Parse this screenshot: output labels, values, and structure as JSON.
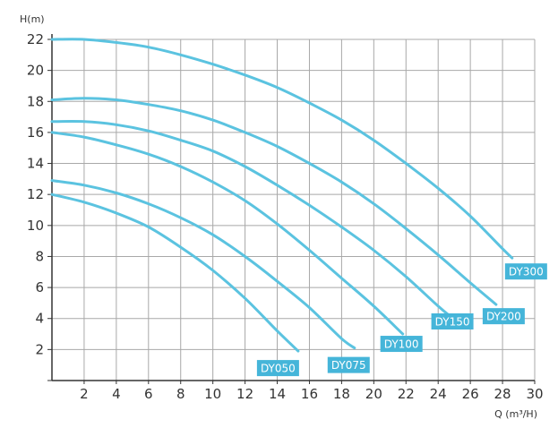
{
  "chart_data": {
    "type": "line",
    "title": "",
    "xlabel": "Q (m³/H)",
    "ylabel": "H(m)",
    "xlim": [
      0,
      30
    ],
    "ylim": [
      0,
      22
    ],
    "x_ticks": [
      2,
      4,
      6,
      8,
      10,
      12,
      14,
      16,
      18,
      20,
      22,
      24,
      26,
      28,
      30
    ],
    "y_ticks": [
      2,
      4,
      6,
      8,
      10,
      12,
      14,
      16,
      18,
      20,
      22
    ],
    "grid": true,
    "legend": "inline labels at curve ends",
    "colors": {
      "curve": "#5bc3e0",
      "label_bg": "#45b5d9",
      "grid": "#a8a8a8",
      "axis": "#333333"
    },
    "series": [
      {
        "name": "DY050",
        "x": [
          0,
          2,
          4,
          6,
          8,
          10,
          12,
          14,
          15.3
        ],
        "y": [
          12,
          11.5,
          10.8,
          9.9,
          8.6,
          7.1,
          5.3,
          3.2,
          1.9
        ]
      },
      {
        "name": "DY075",
        "x": [
          0,
          2,
          4,
          6,
          8,
          10,
          12,
          14,
          16,
          18,
          18.8
        ],
        "y": [
          12.9,
          12.6,
          12.1,
          11.4,
          10.5,
          9.4,
          8.0,
          6.4,
          4.7,
          2.7,
          2.1
        ]
      },
      {
        "name": "DY100",
        "x": [
          0,
          2,
          4,
          6,
          8,
          10,
          12,
          14,
          16,
          18,
          20,
          21.8
        ],
        "y": [
          16,
          15.7,
          15.2,
          14.6,
          13.8,
          12.8,
          11.6,
          10.1,
          8.4,
          6.6,
          4.8,
          3.0
        ]
      },
      {
        "name": "DY150",
        "x": [
          0,
          2,
          4,
          6,
          8,
          10,
          12,
          14,
          16,
          18,
          20,
          22,
          24,
          24.8
        ],
        "y": [
          16.7,
          16.7,
          16.5,
          16.1,
          15.5,
          14.8,
          13.8,
          12.6,
          11.3,
          9.9,
          8.4,
          6.7,
          4.8,
          4.1
        ]
      },
      {
        "name": "DY200",
        "x": [
          0,
          2,
          4,
          6,
          8,
          10,
          12,
          14,
          16,
          18,
          20,
          22,
          24,
          26,
          27.6
        ],
        "y": [
          18.1,
          18.2,
          18.1,
          17.8,
          17.4,
          16.8,
          16.0,
          15.1,
          14.0,
          12.8,
          11.4,
          9.8,
          8.1,
          6.3,
          4.9
        ]
      },
      {
        "name": "DY300",
        "x": [
          0,
          2,
          4,
          6,
          8,
          10,
          12,
          14,
          16,
          18,
          20,
          22,
          24,
          26,
          28,
          28.6
        ],
        "y": [
          22,
          22,
          21.8,
          21.5,
          21.0,
          20.4,
          19.7,
          18.9,
          17.9,
          16.8,
          15.5,
          14.0,
          12.4,
          10.6,
          8.5,
          7.9
        ]
      }
    ]
  }
}
